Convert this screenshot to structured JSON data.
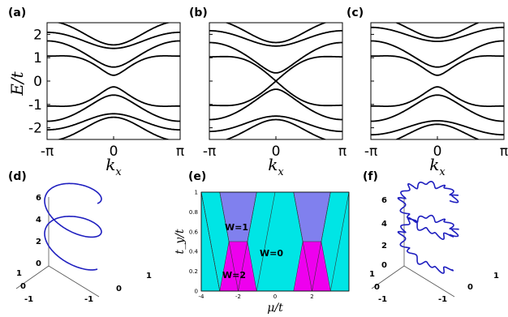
{
  "panels": {
    "a": "(a)",
    "b": "(b)",
    "c": "(c)",
    "d": "(d)",
    "e": "(e)",
    "f": "(f)"
  },
  "colors": {
    "bands": "#000000",
    "curve": "#1f1fbf",
    "w0": "#00e5e5",
    "w1": "#8080ee",
    "w2": "#ee00ee"
  },
  "panel_d": {
    "z_ticks": [
      "6",
      "4",
      "2",
      "0"
    ],
    "y_ticks": [
      "1",
      "0",
      "-1"
    ],
    "x_ticks": [
      "-1",
      "0",
      "1"
    ]
  },
  "panel_f": {
    "z_ticks": [
      "6",
      "4",
      "2",
      "0"
    ],
    "y_ticks": [
      "1",
      "0",
      "-1"
    ],
    "x_ticks": [
      "-1",
      "0",
      "1"
    ]
  },
  "chart_data": [
    {
      "panel": "(a)",
      "type": "line",
      "xlabel": "k_x",
      "ylabel": "E/t",
      "xlim": [
        -3.1416,
        3.1416
      ],
      "ylim": [
        -2.5,
        2.5
      ],
      "xticklabels": [
        "-π",
        "0",
        "π"
      ],
      "yticklabels": [
        "2",
        "1",
        "0",
        "-1",
        "-2"
      ],
      "band_edges": {
        "inner_gap_at_0": 0.25,
        "outer_gap_at_0": 1.4,
        "max_energy": 2.6
      },
      "grid": false
    },
    {
      "panel": "(b)",
      "type": "line",
      "xlabel": "k_x",
      "ylabel": "E/t",
      "xlim": [
        -3.1416,
        3.1416
      ],
      "ylim": [
        -2.5,
        2.5
      ],
      "xticklabels": [
        "-π",
        "0",
        "π"
      ],
      "band_edges": {
        "inner_gap_at_0": 0.0,
        "outer_gap_at_0": 1.5,
        "max_energy": 2.6
      },
      "grid": false
    },
    {
      "panel": "(c)",
      "type": "line",
      "xlabel": "k_x",
      "ylabel": "E/t",
      "xlim": [
        -3.1416,
        3.1416
      ],
      "ylim": [
        -2.5,
        2.5
      ],
      "xticklabels": [
        "-π",
        "0",
        "π"
      ],
      "band_edges": {
        "inner_gap_at_0": 0.25,
        "outer_gap_at_0": 1.7,
        "max_energy": 2.6
      },
      "grid": false
    },
    {
      "panel": "(e)",
      "type": "heatmap",
      "xlabel": "μ/t",
      "ylabel": "t_y/t",
      "xlim": [
        -4,
        4
      ],
      "ylim": [
        0,
        1
      ],
      "xticks": [
        "-4",
        "-2",
        "0",
        "2"
      ],
      "yticks": [
        "0",
        "0.2",
        "0.4",
        "0.6",
        "0.8",
        "1"
      ],
      "annotations": [
        "W=1",
        "W=0",
        "W=2"
      ],
      "phase_boundaries": [
        {
          "from": [
            -4,
            1
          ],
          "to": [
            -3,
            0
          ]
        },
        {
          "from": [
            -3,
            1
          ],
          "to": [
            -2,
            0
          ]
        },
        {
          "from": [
            -1,
            1
          ],
          "to": [
            -2,
            0
          ]
        },
        {
          "from": [
            0,
            1
          ],
          "to": [
            -1,
            0
          ]
        },
        {
          "from": [
            1,
            1
          ],
          "to": [
            2,
            0
          ]
        },
        {
          "from": [
            3,
            1
          ],
          "to": [
            2,
            0
          ]
        },
        {
          "from": [
            4,
            1
          ],
          "to": [
            3,
            0
          ]
        }
      ]
    }
  ]
}
